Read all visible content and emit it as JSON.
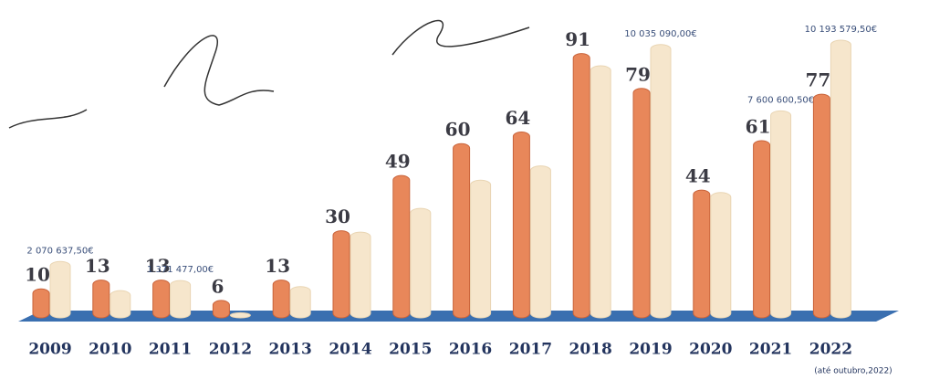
{
  "chart_data": {
    "type": "bar",
    "categories": [
      "2009",
      "2010",
      "2011",
      "2012",
      "2013",
      "2014",
      "2015",
      "2016",
      "2017",
      "2018",
      "2019",
      "2020",
      "2021",
      "2022"
    ],
    "annotation": "(até outubro,2022)",
    "series": [
      {
        "color": "#e8875a",
        "values": [
          10,
          13,
          13,
          6,
          13,
          30,
          49,
          60,
          64,
          91,
          79,
          44,
          61,
          77
        ]
      },
      {
        "color": "#f6e6cc",
        "axis": "y2",
        "values": [
          2070637.5,
          1000000,
          1371477,
          189500,
          1150000,
          3150000,
          4020000,
          5054000,
          5578000,
          9254150,
          10035090,
          4601000,
          7600600.5,
          10193579.5
        ],
        "value_labels": [
          "2 070 637,50€",
          null,
          "1 371 477,00€",
          null,
          null,
          null,
          null,
          null,
          null,
          null,
          "10 035 090,00€",
          null,
          "7 600 600,50€",
          "10 193 579,50€"
        ]
      }
    ],
    "ylim": [
      0,
      100
    ],
    "y2lim": [
      0,
      11000000
    ]
  }
}
